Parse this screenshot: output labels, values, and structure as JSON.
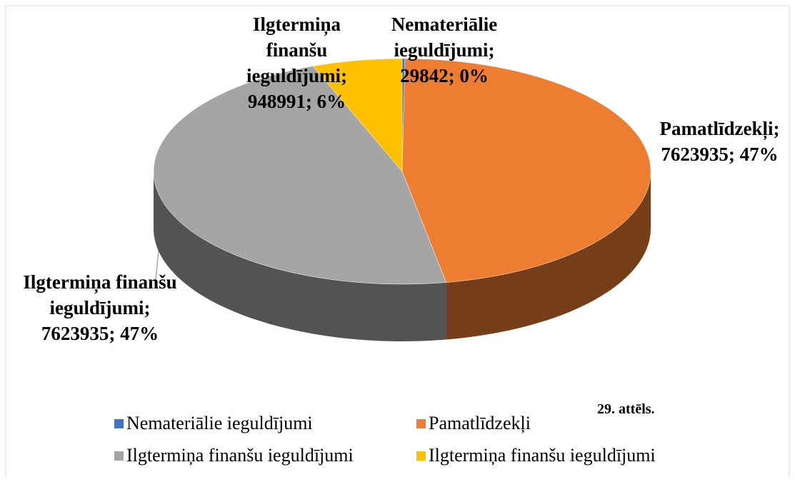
{
  "chart_data": {
    "type": "pie",
    "categories": [
      "Nemateriālie ieguldījumi",
      "Pamatlīdzekļi",
      "Ilgtermiņa finanšu ieguldījumi",
      "Ilgtermiņa finanšu ieguldījumi"
    ],
    "values": [
      29842,
      7623935,
      7623935,
      948991
    ],
    "value_labels": [
      "Nemateriālie ieguldījumi; 29842; 0%",
      "Pamatlīdzekļi; 7623935; 47%",
      "Ilgtermiņa finanšu ieguldījumi; 7623935; 47%",
      "Ilgtermiņa finanšu ieguldījumi; 948991; 6%"
    ],
    "colors": [
      "#4472c4",
      "#ed7d31",
      "#a5a5a5",
      "#ffc000"
    ],
    "caption": "29. attēls.",
    "legend": "bottom"
  }
}
